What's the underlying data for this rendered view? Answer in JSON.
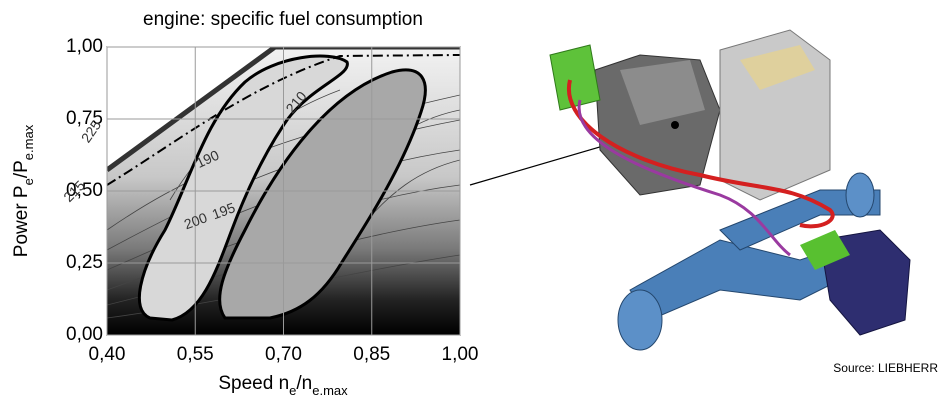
{
  "chart_data": {
    "type": "contour",
    "title": "engine: specific fuel consumption",
    "x_label": [
      "Speed n",
      "e",
      "/n",
      "e.max"
    ],
    "y_label": [
      "Power P",
      "e",
      "/P",
      "e.max"
    ],
    "xlim": [
      0.4,
      1.0
    ],
    "xticks": [
      {
        "value": 0.4,
        "label": "0,40"
      },
      {
        "value": 0.55,
        "label": "0,55"
      },
      {
        "value": 0.7,
        "label": "0,70"
      },
      {
        "value": 0.85,
        "label": "0,85"
      },
      {
        "value": 1.0,
        "label": "1,00"
      }
    ],
    "ylim": [
      0,
      1
    ],
    "yticks": [
      {
        "value": 0,
        "label": "0,00"
      },
      {
        "value": 0.25,
        "label": "0,25"
      },
      {
        "value": 0.5,
        "label": "0,50"
      },
      {
        "value": 0.75,
        "label": "0,75"
      },
      {
        "value": 1.0,
        "label": "1,00"
      }
    ],
    "grid": true,
    "contour_labels": [
      "225",
      "210",
      "190",
      "200",
      "195",
      "215"
    ]
  },
  "source": "Source: LIEBHERR"
}
